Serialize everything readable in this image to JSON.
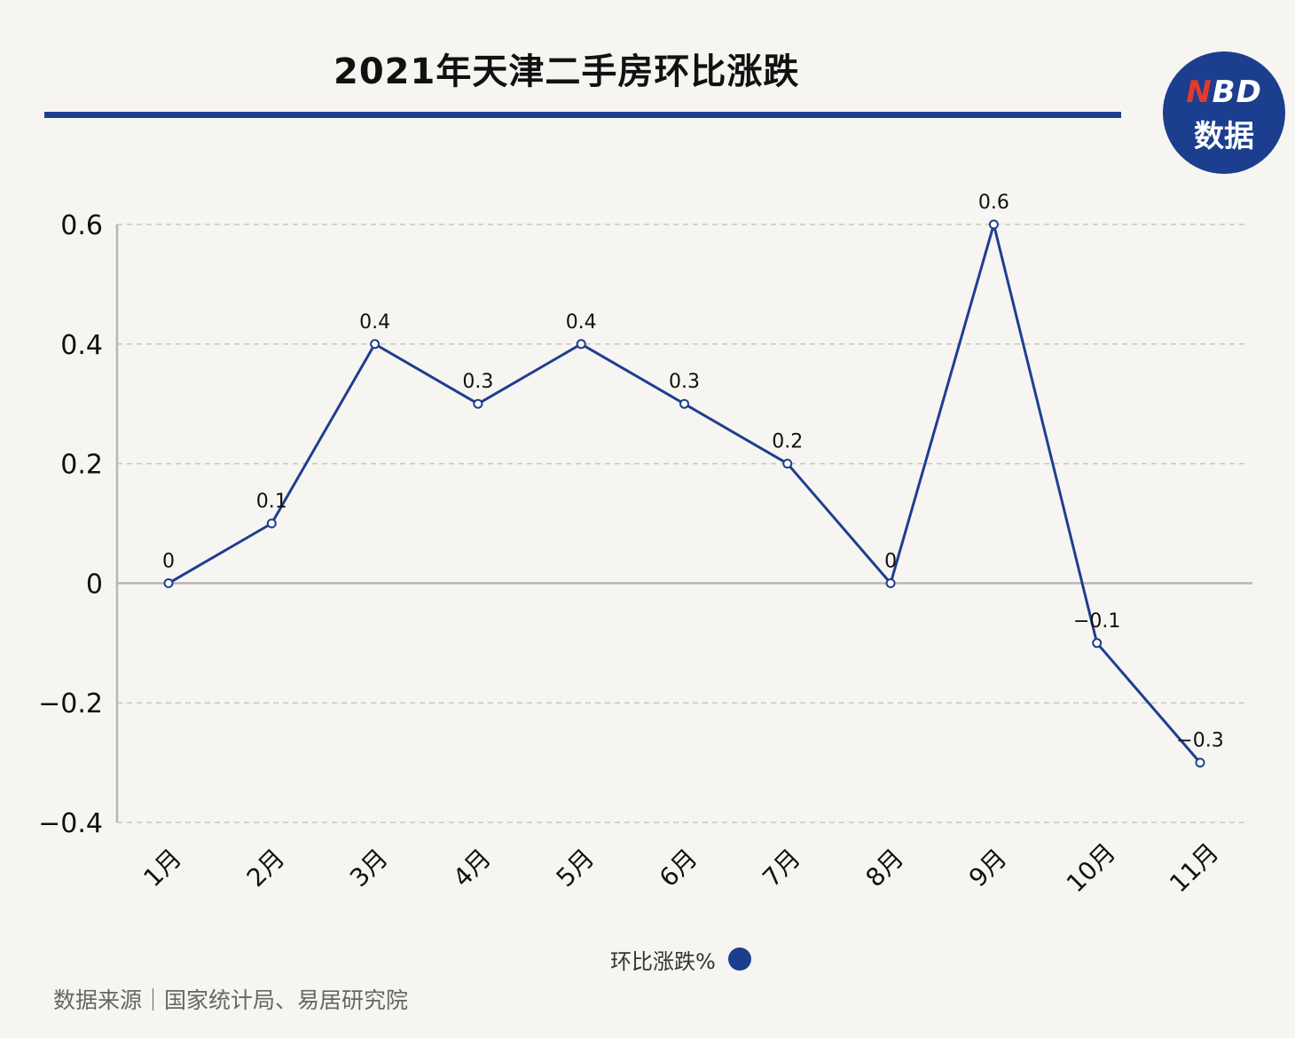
{
  "title": "2021年天津二手房环比涨跌",
  "brand": {
    "line1_n": "N",
    "line1_rest": "BD",
    "line2": "数据"
  },
  "colors": {
    "line": "#1e3f8f",
    "grid": "#c9c6c1",
    "axis": "#b8b6b3",
    "badge": "#1c3e8e"
  },
  "chart_data": {
    "type": "line",
    "categories": [
      "1月",
      "2月",
      "3月",
      "4月",
      "5月",
      "6月",
      "7月",
      "8月",
      "9月",
      "10月",
      "11月"
    ],
    "series": [
      {
        "name": "环比涨跌%",
        "values": [
          0,
          0.1,
          0.4,
          0.3,
          0.4,
          0.3,
          0.2,
          0,
          0.6,
          -0.1,
          -0.3
        ]
      }
    ],
    "data_labels": [
      "0",
      "0.1",
      "0.4",
      "0.3",
      "0.4",
      "0.3",
      "0.2",
      "0",
      "0.6",
      "−0.1",
      "−0.3"
    ],
    "yticks": [
      0.6,
      0.4,
      0.2,
      0,
      -0.2,
      -0.4
    ],
    "ytick_labels": [
      "0.6",
      "0.4",
      "0.2",
      "0",
      "−0.2",
      "−0.4"
    ],
    "ylim": [
      -0.4,
      0.6
    ],
    "grid": true,
    "legend": "bottom-center"
  },
  "legend_label": "环比涨跌%",
  "source": "数据来源｜国家统计局、易居研究院"
}
